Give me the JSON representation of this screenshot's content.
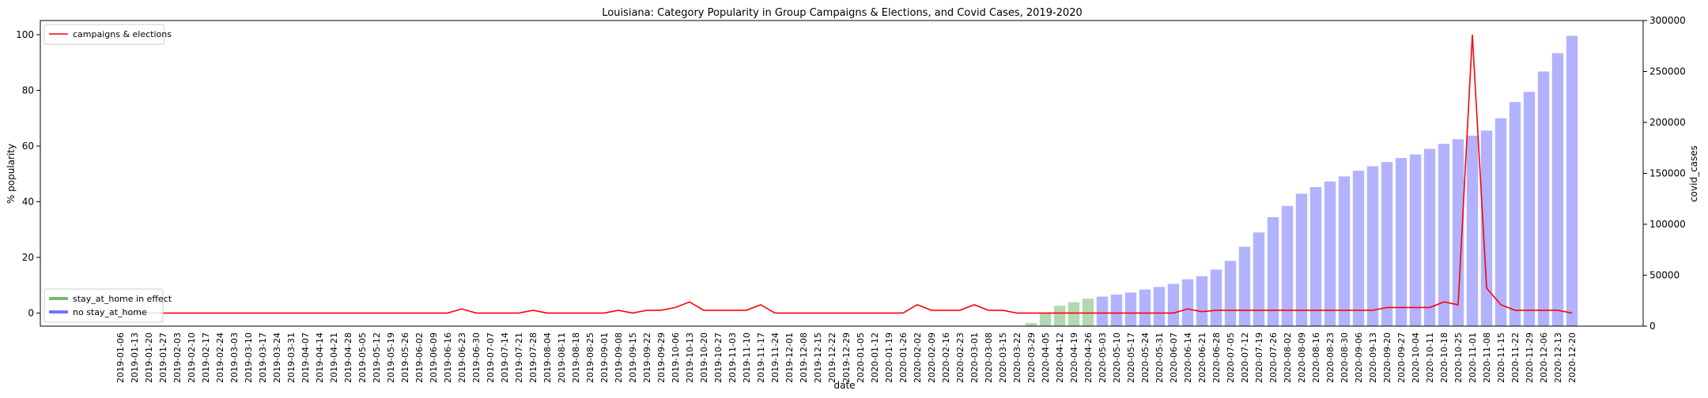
{
  "chart_data": {
    "type": "bar_line",
    "title": "Louisiana: Category Popularity in Group Campaigns & Elections, and Covid Cases, 2019-2020",
    "x_label": "date",
    "y_label": "% popularity",
    "y2_label": "covid_cases",
    "categories": [
      "2019-01-06",
      "2019-01-13",
      "2019-01-20",
      "2019-01-27",
      "2019-02-03",
      "2019-02-10",
      "2019-02-17",
      "2019-02-24",
      "2019-03-03",
      "2019-03-10",
      "2019-03-17",
      "2019-03-24",
      "2019-03-31",
      "2019-04-07",
      "2019-04-14",
      "2019-04-21",
      "2019-04-28",
      "2019-05-05",
      "2019-05-12",
      "2019-05-19",
      "2019-05-26",
      "2019-06-02",
      "2019-06-09",
      "2019-06-16",
      "2019-06-23",
      "2019-06-30",
      "2019-07-07",
      "2019-07-14",
      "2019-07-21",
      "2019-07-28",
      "2019-08-04",
      "2019-08-11",
      "2019-08-18",
      "2019-08-25",
      "2019-09-01",
      "2019-09-08",
      "2019-09-15",
      "2019-09-22",
      "2019-09-29",
      "2019-10-06",
      "2019-10-13",
      "2019-10-20",
      "2019-10-27",
      "2019-11-03",
      "2019-11-10",
      "2019-11-17",
      "2019-11-24",
      "2019-12-01",
      "2019-12-08",
      "2019-12-15",
      "2019-12-22",
      "2019-12-29",
      "2020-01-05",
      "2020-01-12",
      "2020-01-19",
      "2020-01-26",
      "2020-02-02",
      "2020-02-09",
      "2020-02-16",
      "2020-02-23",
      "2020-03-01",
      "2020-03-08",
      "2020-03-15",
      "2020-03-22",
      "2020-03-29",
      "2020-04-05",
      "2020-04-12",
      "2020-04-19",
      "2020-04-26",
      "2020-05-03",
      "2020-05-10",
      "2020-05-17",
      "2020-05-24",
      "2020-05-31",
      "2020-06-07",
      "2020-06-14",
      "2020-06-21",
      "2020-06-28",
      "2020-07-05",
      "2020-07-12",
      "2020-07-19",
      "2020-07-26",
      "2020-08-02",
      "2020-08-09",
      "2020-08-16",
      "2020-08-23",
      "2020-08-30",
      "2020-09-06",
      "2020-09-13",
      "2020-09-20",
      "2020-09-27",
      "2020-10-04",
      "2020-10-11",
      "2020-10-18",
      "2020-10-25",
      "2020-11-01",
      "2020-11-08",
      "2020-11-15",
      "2020-11-22",
      "2020-11-29",
      "2020-12-06",
      "2020-12-13",
      "2020-12-20"
    ],
    "series": [
      {
        "name": "campaigns & elections",
        "type": "line",
        "axis": "y",
        "color": "#ff0000",
        "values": [
          0,
          0,
          0,
          0,
          0,
          0,
          0,
          0,
          0,
          0,
          0,
          0,
          0,
          0,
          0,
          0,
          0,
          0,
          0,
          0,
          0,
          0,
          0,
          0,
          1.5,
          0,
          0,
          0,
          0,
          1,
          0,
          0,
          0,
          0,
          0,
          1,
          0,
          1,
          1,
          2,
          4,
          1,
          1,
          1,
          1,
          3,
          0,
          0,
          0,
          0,
          0,
          0,
          0,
          0,
          0,
          0,
          3,
          1,
          1,
          1,
          3,
          1,
          1,
          0,
          0,
          0,
          0,
          0,
          0,
          0,
          0,
          0,
          0,
          0,
          0,
          1.5,
          0.5,
          1,
          1,
          1,
          1,
          1,
          1,
          1,
          1,
          1,
          1,
          1,
          1,
          2,
          2,
          2,
          2,
          4,
          3,
          100,
          9,
          3,
          1,
          1,
          1,
          1,
          0
        ]
      },
      {
        "name": "stay_at_home in effect",
        "type": "bar",
        "axis": "y2",
        "color": "#008000",
        "values": [
          null,
          null,
          null,
          null,
          null,
          null,
          null,
          null,
          null,
          null,
          null,
          null,
          null,
          null,
          null,
          null,
          null,
          null,
          null,
          null,
          null,
          null,
          null,
          null,
          null,
          null,
          null,
          null,
          null,
          null,
          null,
          null,
          null,
          null,
          null,
          null,
          null,
          null,
          null,
          null,
          null,
          null,
          null,
          null,
          null,
          null,
          null,
          null,
          null,
          null,
          null,
          null,
          null,
          null,
          null,
          null,
          null,
          null,
          null,
          null,
          null,
          null,
          null,
          null,
          3000,
          13000,
          20000,
          23500,
          27000,
          null,
          null,
          null,
          null,
          null,
          null,
          null,
          null,
          null,
          null,
          null,
          null,
          null,
          null,
          null,
          null,
          null,
          null,
          null,
          null,
          null,
          null,
          null,
          null,
          null,
          null,
          null,
          null,
          null,
          null,
          null,
          null,
          null,
          null
        ]
      },
      {
        "name": "no stay_at_home",
        "type": "bar",
        "axis": "y2",
        "color": "#0000ff",
        "values": [
          null,
          null,
          null,
          null,
          null,
          null,
          null,
          null,
          null,
          null,
          null,
          null,
          null,
          null,
          null,
          null,
          null,
          null,
          null,
          null,
          null,
          null,
          null,
          null,
          null,
          null,
          null,
          null,
          null,
          null,
          null,
          null,
          null,
          null,
          null,
          null,
          null,
          null,
          null,
          null,
          null,
          null,
          null,
          null,
          null,
          null,
          null,
          null,
          null,
          null,
          null,
          null,
          null,
          null,
          null,
          null,
          null,
          null,
          null,
          null,
          null,
          null,
          null,
          null,
          null,
          null,
          null,
          null,
          null,
          29000,
          31000,
          33000,
          36000,
          38500,
          41500,
          46000,
          49000,
          55500,
          64000,
          78000,
          92000,
          107000,
          118000,
          130000,
          136500,
          142000,
          147000,
          152500,
          157000,
          161000,
          165000,
          168500,
          174000,
          179000,
          183500,
          187000,
          192000,
          204000,
          220000,
          230000,
          250000,
          268000,
          285000
        ]
      }
    ],
    "ylim": [
      -4.7,
      105.1
    ],
    "yticks": [
      0,
      20,
      40,
      60,
      80,
      100
    ],
    "y2lim": [
      0,
      300000
    ],
    "y2ticks": [
      0,
      50000,
      100000,
      150000,
      200000,
      250000,
      300000
    ],
    "legend": {
      "line": "upper left",
      "bar": "lower left"
    }
  }
}
